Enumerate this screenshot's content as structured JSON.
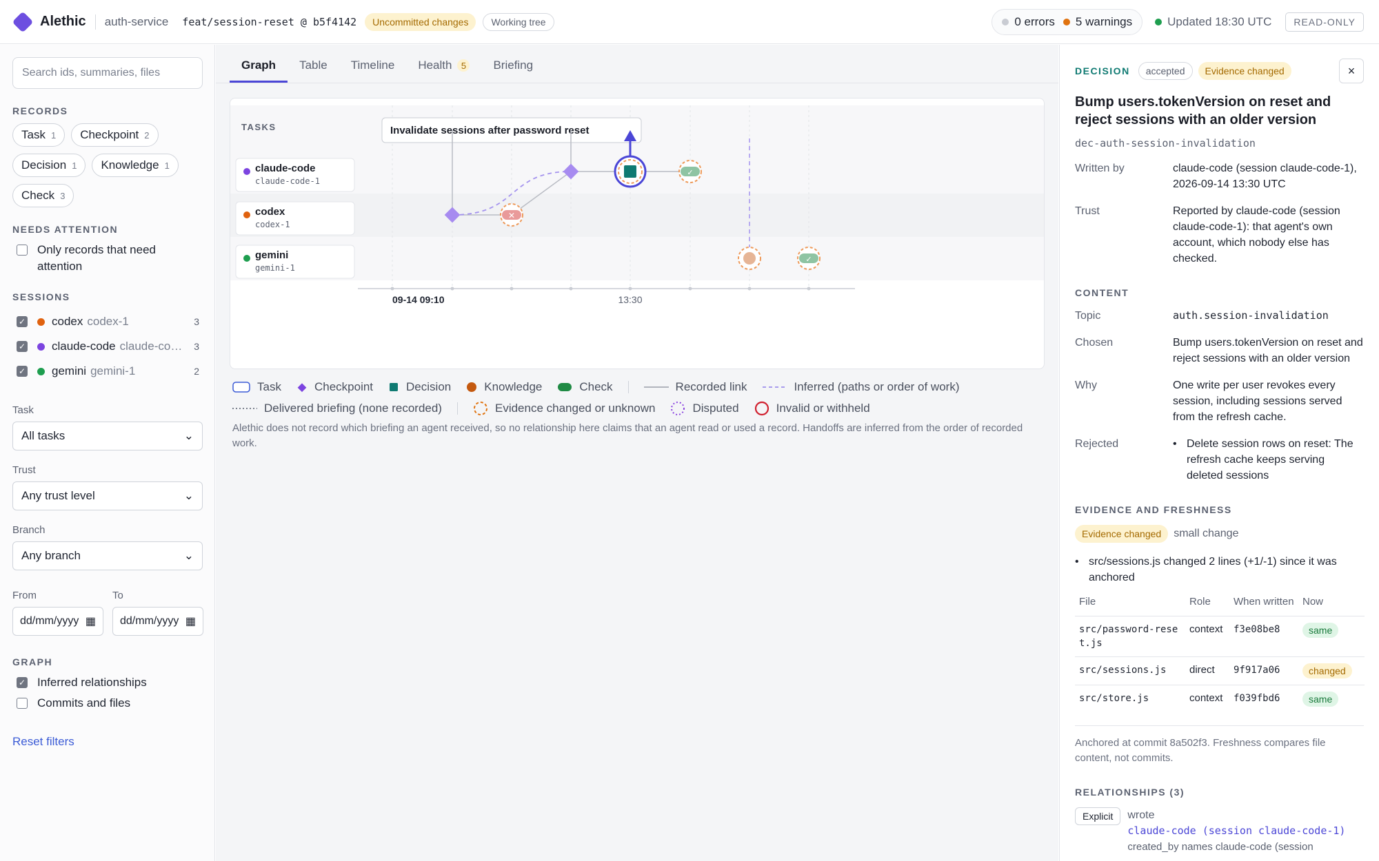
{
  "topbar": {
    "app_name": "Alethic",
    "service": "auth-service",
    "branch": "feat/session-reset @ b5f4142",
    "uncommitted": "Uncommitted changes",
    "working_tree": "Working tree",
    "errors": "0 errors",
    "warnings": "5 warnings",
    "updated": "Updated 18:30 UTC",
    "readonly": "READ-ONLY",
    "colors": {
      "brand": "#6d4fe0",
      "error_dot": "#c9ccd3",
      "warning_dot": "#e0730f",
      "ok_dot": "#1e9e4f"
    }
  },
  "sidebar": {
    "search_placeholder": "Search ids, summaries, files",
    "records_heading": "RECORDS",
    "record_chips": [
      {
        "label": "Task",
        "count": "1"
      },
      {
        "label": "Checkpoint",
        "count": "2"
      },
      {
        "label": "Decision",
        "count": "1"
      },
      {
        "label": "Knowledge",
        "count": "1"
      },
      {
        "label": "Check",
        "count": "3"
      }
    ],
    "attention_heading": "NEEDS ATTENTION",
    "attention_label": "Only records that need attention",
    "sessions_heading": "SESSIONS",
    "sessions": [
      {
        "agent": "codex",
        "session": "codex-1",
        "count": "3",
        "color": "#e0620f",
        "checked": true
      },
      {
        "agent": "claude-code",
        "session": "claude-code-1",
        "count": "3",
        "color": "#7c44e0",
        "checked": true
      },
      {
        "agent": "gemini",
        "session": "gemini-1",
        "count": "2",
        "color": "#1e9e4f",
        "checked": true
      }
    ],
    "task_label": "Task",
    "task_value": "All tasks",
    "trust_label": "Trust",
    "trust_value": "Any trust level",
    "branch_label": "Branch",
    "branch_value": "Any branch",
    "from_label": "From",
    "to_label": "To",
    "date_placeholder": "dd/mm/yyyy",
    "graph_heading": "GRAPH",
    "inferred_label": "Inferred relationships",
    "commits_label": "Commits and files",
    "reset_label": "Reset filters"
  },
  "main": {
    "tabs": [
      {
        "label": "Graph",
        "active": true
      },
      {
        "label": "Table"
      },
      {
        "label": "Timeline"
      },
      {
        "label": "Health",
        "badge": "5"
      },
      {
        "label": "Briefing"
      }
    ],
    "graph": {
      "tasks_heading": "TASKS",
      "task_label": "Invalidate sessions after password reset",
      "lanes": [
        {
          "agent": "claude-code",
          "session": "claude-code-1",
          "color": "#7c44e0"
        },
        {
          "agent": "codex",
          "session": "codex-1",
          "color": "#e0620f"
        },
        {
          "agent": "gemini",
          "session": "gemini-1",
          "color": "#1e9e4f"
        }
      ],
      "axis_start": "09-14 09:10",
      "axis_mid": "13:30"
    },
    "legend": {
      "task": "Task",
      "checkpoint": "Checkpoint",
      "decision": "Decision",
      "knowledge": "Knowledge",
      "check": "Check",
      "recorded": "Recorded link",
      "inferred": "Inferred (paths or order of work)",
      "delivered": "Delivered briefing (none recorded)",
      "evidence": "Evidence changed or unknown",
      "disputed": "Disputed",
      "invalid": "Invalid or withheld"
    },
    "note": "Alethic does not record which briefing an agent received, so no relationship here claims that an agent read or used a record. Handoffs are inferred from the order of recorded work."
  },
  "detail": {
    "kind": "DECISION",
    "status": "accepted",
    "evidence_badge": "Evidence changed",
    "close": "×",
    "title": "Bump users.tokenVersion on reset and reject sessions with an older version",
    "id": "dec-auth-session-invalidation",
    "written_by_label": "Written by",
    "written_by": "claude-code (session claude-code-1), 2026-09-14 13:30 UTC",
    "trust_label": "Trust",
    "trust": "Reported by claude-code (session claude-code-1): that agent's own account, which nobody else has checked.",
    "content_heading": "CONTENT",
    "topic_label": "Topic",
    "topic": "auth.session-invalidation",
    "chosen_label": "Chosen",
    "chosen": "Bump users.tokenVersion on reset and reject sessions with an older version",
    "why_label": "Why",
    "why": "One write per user revokes every session, including sessions served from the refresh cache.",
    "rejected_label": "Rejected",
    "rejected": "Delete session rows on reset: The refresh cache keeps serving deleted sessions",
    "evidence_heading": "EVIDENCE AND FRESHNESS",
    "evidence_state": "Evidence changed",
    "evidence_size": "small change",
    "evidence_note": "src/sessions.js changed 2 lines (+1/-1) since it was anchored",
    "file_headers": {
      "file": "File",
      "role": "Role",
      "when": "When written",
      "now": "Now"
    },
    "files": [
      {
        "file": "src/password-reset.js",
        "role": "context",
        "hash": "f3e08be8",
        "now": "same"
      },
      {
        "file": "src/sessions.js",
        "role": "direct",
        "hash": "9f917a06",
        "now": "changed"
      },
      {
        "file": "src/store.js",
        "role": "context",
        "hash": "f039fbd6",
        "now": "same"
      }
    ],
    "anchor_note": "Anchored at commit 8a502f3. Freshness compares file content, not commits.",
    "relationships_heading": "RELATIONSHIPS (3)",
    "rel_kind": "Explicit",
    "rel_verb": "wrote",
    "rel_target": "claude-code (session claude-code-1)",
    "rel_note": "created_by names claude-code (session"
  }
}
